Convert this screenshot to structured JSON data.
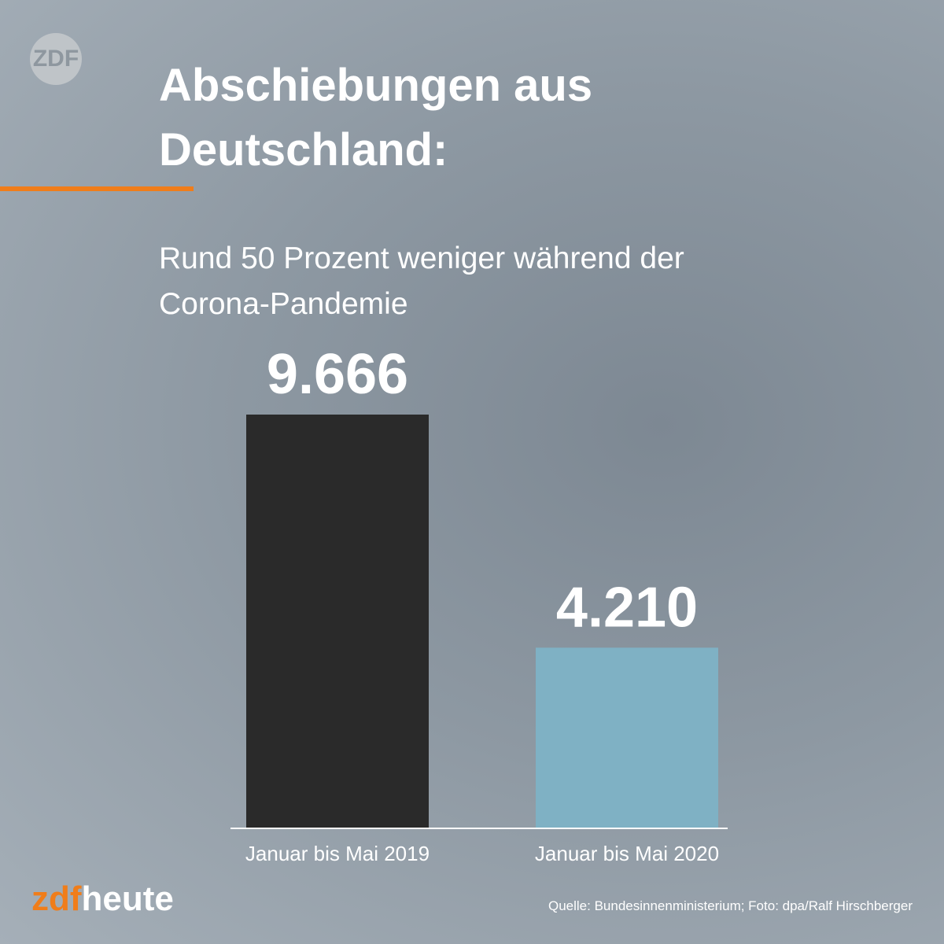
{
  "chart_data": {
    "type": "bar",
    "title": "Abschiebungen aus Deutschland:",
    "subtitle": "Rund 50 Prozent weniger während der Corona-Pandemie",
    "categories": [
      "Januar bis Mai 2019",
      "Januar bis Mai 2020"
    ],
    "values": [
      9666,
      4210
    ],
    "value_labels": [
      "9.666",
      "4.210"
    ],
    "colors": [
      "#2a2a2a",
      "#7fb1c4"
    ],
    "source": "Quelle: Bundesinnenministerium; Foto: dpa/Ralf Hirschberger"
  },
  "branding": {
    "logo": "ZDF",
    "brand_prefix": "zdf",
    "brand_suffix": "heute"
  }
}
